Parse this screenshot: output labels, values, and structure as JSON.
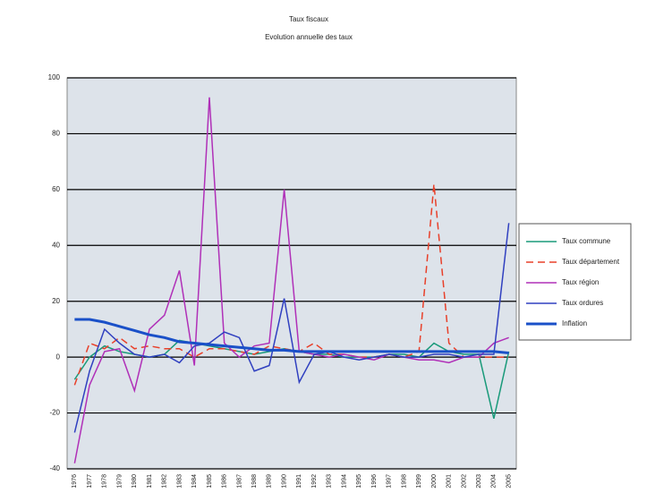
{
  "chart_data": {
    "type": "line",
    "title": "Taux fiscaux",
    "subtitle": "Evolution annuelle des taux",
    "categories": [
      "1976",
      "1977",
      "1978",
      "1979",
      "1980",
      "1981",
      "1982",
      "1983",
      "1984",
      "1985",
      "1986",
      "1987",
      "1988",
      "1989",
      "1990",
      "1991",
      "1992",
      "1993",
      "1994",
      "1995",
      "1996",
      "1997",
      "1998",
      "1999",
      "2000",
      "2001",
      "2002",
      "2003",
      "2004",
      "2005"
    ],
    "ylim": [
      -40,
      100
    ],
    "yticks": [
      -40,
      -20,
      0,
      20,
      40,
      60,
      80,
      100
    ],
    "grid": true,
    "legend": "right",
    "series": [
      {
        "name": "Taux commune",
        "color": "#1a9a7a",
        "dash": false,
        "width": 1.5,
        "values": [
          -8,
          0,
          4,
          2,
          1,
          0,
          1,
          6,
          5,
          4,
          3,
          2,
          1,
          2,
          3,
          2,
          1,
          1,
          0,
          0,
          0,
          1,
          1,
          0,
          5,
          2,
          1,
          1,
          -22,
          2
        ]
      },
      {
        "name": "Taux département",
        "color": "#e8402a",
        "dash": true,
        "width": 1.5,
        "values": [
          -10,
          5,
          3,
          7,
          3,
          4,
          3,
          3,
          0,
          3,
          3,
          2,
          1,
          4,
          3,
          2,
          5,
          1,
          1,
          0,
          0,
          1,
          0,
          2,
          62,
          5,
          0,
          0,
          0,
          0
        ]
      },
      {
        "name": "Taux région",
        "color": "#b030b8",
        "dash": false,
        "width": 1.5,
        "values": [
          -38,
          -10,
          2,
          3,
          -12,
          10,
          15,
          31,
          -3,
          93,
          5,
          0,
          4,
          5,
          60,
          2,
          1,
          0,
          1,
          0,
          -1,
          1,
          0,
          -1,
          -1,
          -2,
          0,
          0,
          5,
          7
        ]
      },
      {
        "name": "Taux ordures",
        "color": "#3040c0",
        "dash": false,
        "width": 1.5,
        "values": [
          -27,
          -5,
          10,
          5,
          1,
          0,
          1,
          -2,
          4,
          5,
          9,
          7,
          -5,
          -3,
          21,
          -9,
          1,
          2,
          0,
          -1,
          0,
          1,
          0,
          0,
          1,
          1,
          0,
          1,
          1,
          48
        ]
      },
      {
        "name": "Inflation",
        "color": "#1a50c8",
        "dash": false,
        "width": 3,
        "values": [
          13.5,
          13.5,
          12.5,
          11,
          9.5,
          8,
          7,
          5.5,
          5,
          4.5,
          4,
          3.5,
          3,
          2.5,
          2.5,
          2,
          2,
          2,
          2,
          2,
          2,
          2,
          2,
          2,
          2,
          2,
          2,
          2,
          2,
          1.5
        ]
      }
    ]
  }
}
